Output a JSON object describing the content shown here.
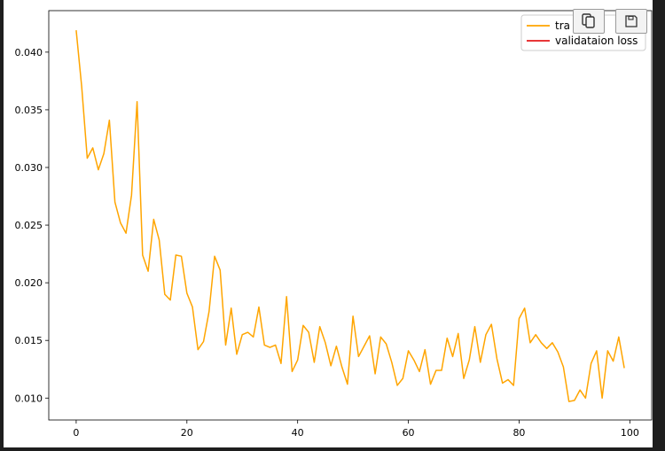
{
  "toolbar": {
    "copy_icon": "copy-icon",
    "save_icon": "floppy-disk-icon"
  },
  "chart_data": {
    "type": "line",
    "title": "",
    "xlabel": "",
    "ylabel": "",
    "xlim": [
      -4.95,
      103.95
    ],
    "ylim": [
      0.0081,
      0.0436
    ],
    "xticks": [
      0,
      20,
      40,
      60,
      80,
      100
    ],
    "xtick_labels": [
      "0",
      "20",
      "40",
      "60",
      "80",
      "100"
    ],
    "yticks": [
      0.01,
      0.015,
      0.02,
      0.025,
      0.03,
      0.035,
      0.04
    ],
    "ytick_labels": [
      "0.010",
      "0.015",
      "0.020",
      "0.025",
      "0.030",
      "0.035",
      "0.040"
    ],
    "grid": false,
    "legend": {
      "placement": "top-right",
      "entries": [
        "tra",
        "validataion loss"
      ]
    },
    "series": [
      {
        "name": "tra",
        "color": "#ffa500",
        "x": [
          0,
          1,
          2,
          3,
          4,
          5,
          6,
          7,
          8,
          9,
          10,
          11,
          12,
          13,
          14,
          15,
          16,
          17,
          18,
          19,
          20,
          21,
          22,
          23,
          24,
          25,
          26,
          27,
          28,
          29,
          30,
          31,
          32,
          33,
          34,
          35,
          36,
          37,
          38,
          39,
          40,
          41,
          42,
          43,
          44,
          45,
          46,
          47,
          48,
          49,
          50,
          51,
          52,
          53,
          54,
          55,
          56,
          57,
          58,
          59,
          60,
          61,
          62,
          63,
          64,
          65,
          66,
          67,
          68,
          69,
          70,
          71,
          72,
          73,
          74,
          75,
          76,
          77,
          78,
          79,
          80,
          81,
          82,
          83,
          84,
          85,
          86,
          87,
          88,
          89,
          90,
          91,
          92,
          93,
          94,
          95,
          96,
          97,
          98,
          99
        ],
        "values": [
          0.0419,
          0.037,
          0.0308,
          0.0317,
          0.0298,
          0.0312,
          0.0341,
          0.027,
          0.0252,
          0.0243,
          0.0276,
          0.0357,
          0.0224,
          0.021,
          0.0255,
          0.0237,
          0.019,
          0.0185,
          0.0224,
          0.0223,
          0.0191,
          0.0179,
          0.0142,
          0.0149,
          0.0175,
          0.0223,
          0.0211,
          0.0146,
          0.0178,
          0.0138,
          0.0155,
          0.0157,
          0.0153,
          0.0179,
          0.0146,
          0.0144,
          0.0146,
          0.013,
          0.0188,
          0.0123,
          0.0133,
          0.0163,
          0.0157,
          0.0131,
          0.0162,
          0.0148,
          0.0128,
          0.0145,
          0.0127,
          0.0112,
          0.0171,
          0.0136,
          0.0145,
          0.0154,
          0.0121,
          0.0153,
          0.0147,
          0.0131,
          0.0111,
          0.0117,
          0.0141,
          0.0133,
          0.0123,
          0.0142,
          0.0112,
          0.0124,
          0.0124,
          0.0152,
          0.0136,
          0.0156,
          0.0117,
          0.0133,
          0.0162,
          0.0131,
          0.0155,
          0.0164,
          0.0134,
          0.0113,
          0.0116,
          0.0111,
          0.0169,
          0.0178,
          0.0148,
          0.0155,
          0.0148,
          0.0143,
          0.0148,
          0.014,
          0.0127,
          0.0097,
          0.0098,
          0.0107,
          0.01,
          0.013,
          0.0141,
          0.01,
          0.0141,
          0.0132,
          0.0153,
          0.0126
        ]
      },
      {
        "name": "validataion loss",
        "color": "#e41a1c",
        "x": [],
        "values": []
      }
    ]
  }
}
